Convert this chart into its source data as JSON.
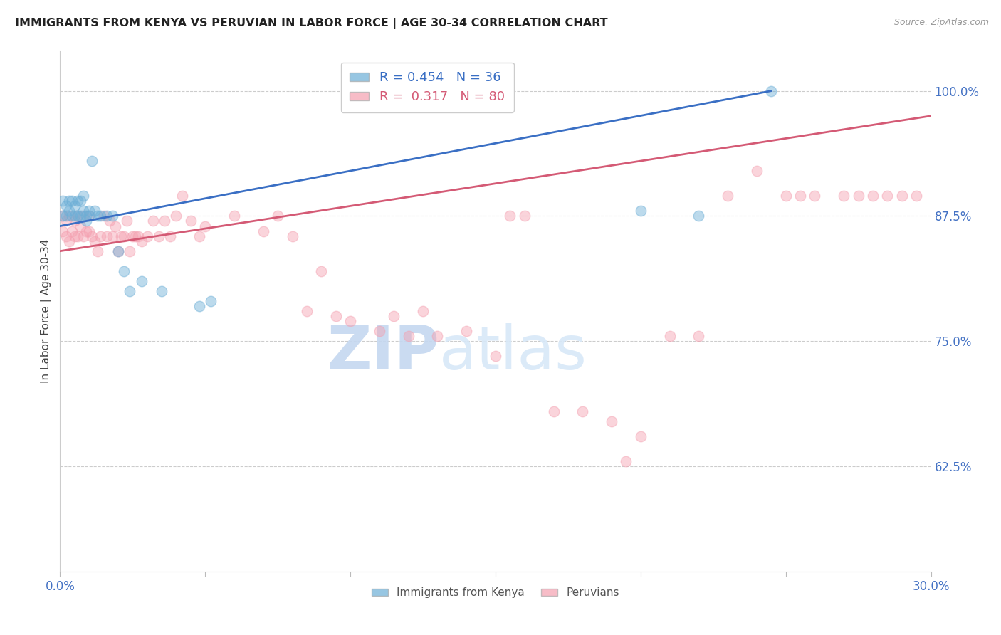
{
  "title": "IMMIGRANTS FROM KENYA VS PERUVIAN IN LABOR FORCE | AGE 30-34 CORRELATION CHART",
  "source": "Source: ZipAtlas.com",
  "ylabel": "In Labor Force | Age 30-34",
  "xlim": [
    0.0,
    0.3
  ],
  "ylim": [
    0.52,
    1.04
  ],
  "xticks": [
    0.0,
    0.05,
    0.1,
    0.15,
    0.2,
    0.25,
    0.3
  ],
  "xticklabels": [
    "0.0%",
    "",
    "",
    "",
    "",
    "",
    "30.0%"
  ],
  "yticks": [
    0.625,
    0.75,
    0.875,
    1.0
  ],
  "yticklabels": [
    "62.5%",
    "75.0%",
    "87.5%",
    "100.0%"
  ],
  "kenya_R": 0.454,
  "kenya_N": 36,
  "peru_R": 0.317,
  "peru_N": 80,
  "kenya_color": "#6baed6",
  "peru_color": "#f4a0b0",
  "kenya_line_color": "#3a6fc4",
  "peru_line_color": "#d45a75",
  "kenya_x": [
    0.001,
    0.001,
    0.002,
    0.002,
    0.003,
    0.003,
    0.004,
    0.004,
    0.005,
    0.005,
    0.006,
    0.006,
    0.007,
    0.007,
    0.008,
    0.008,
    0.009,
    0.009,
    0.01,
    0.01,
    0.011,
    0.012,
    0.013,
    0.014,
    0.016,
    0.018,
    0.02,
    0.022,
    0.024,
    0.028,
    0.035,
    0.048,
    0.052,
    0.2,
    0.22,
    0.245
  ],
  "kenya_y": [
    0.89,
    0.875,
    0.885,
    0.875,
    0.89,
    0.88,
    0.89,
    0.875,
    0.885,
    0.875,
    0.89,
    0.875,
    0.89,
    0.875,
    0.895,
    0.88,
    0.875,
    0.87,
    0.88,
    0.875,
    0.93,
    0.88,
    0.875,
    0.875,
    0.875,
    0.875,
    0.84,
    0.82,
    0.8,
    0.81,
    0.8,
    0.785,
    0.79,
    0.88,
    0.875,
    1.0
  ],
  "peru_x": [
    0.001,
    0.001,
    0.002,
    0.002,
    0.003,
    0.003,
    0.004,
    0.005,
    0.005,
    0.006,
    0.006,
    0.007,
    0.008,
    0.008,
    0.009,
    0.01,
    0.01,
    0.011,
    0.012,
    0.013,
    0.014,
    0.015,
    0.016,
    0.017,
    0.018,
    0.019,
    0.02,
    0.021,
    0.022,
    0.023,
    0.024,
    0.025,
    0.026,
    0.027,
    0.028,
    0.03,
    0.032,
    0.034,
    0.036,
    0.038,
    0.04,
    0.042,
    0.045,
    0.048,
    0.05,
    0.06,
    0.07,
    0.075,
    0.08,
    0.085,
    0.09,
    0.095,
    0.1,
    0.11,
    0.115,
    0.12,
    0.125,
    0.13,
    0.14,
    0.15,
    0.155,
    0.16,
    0.17,
    0.18,
    0.19,
    0.195,
    0.2,
    0.21,
    0.22,
    0.23,
    0.24,
    0.25,
    0.255,
    0.26,
    0.27,
    0.275,
    0.28,
    0.285,
    0.29,
    0.295
  ],
  "peru_y": [
    0.875,
    0.86,
    0.87,
    0.855,
    0.875,
    0.85,
    0.86,
    0.87,
    0.855,
    0.875,
    0.855,
    0.865,
    0.875,
    0.855,
    0.86,
    0.875,
    0.86,
    0.855,
    0.85,
    0.84,
    0.855,
    0.875,
    0.855,
    0.87,
    0.855,
    0.865,
    0.84,
    0.855,
    0.855,
    0.87,
    0.84,
    0.855,
    0.855,
    0.855,
    0.85,
    0.855,
    0.87,
    0.855,
    0.87,
    0.855,
    0.875,
    0.895,
    0.87,
    0.855,
    0.865,
    0.875,
    0.86,
    0.875,
    0.855,
    0.78,
    0.82,
    0.775,
    0.77,
    0.76,
    0.775,
    0.755,
    0.78,
    0.755,
    0.76,
    0.735,
    0.875,
    0.875,
    0.68,
    0.68,
    0.67,
    0.63,
    0.655,
    0.755,
    0.755,
    0.895,
    0.92,
    0.895,
    0.895,
    0.895,
    0.895,
    0.895,
    0.895,
    0.895,
    0.895,
    0.895
  ],
  "watermark_zip": "ZIP",
  "watermark_atlas": "atlas",
  "title_color": "#222222",
  "axis_color": "#4472c4",
  "grid_color": "#cccccc",
  "background_color": "#ffffff"
}
